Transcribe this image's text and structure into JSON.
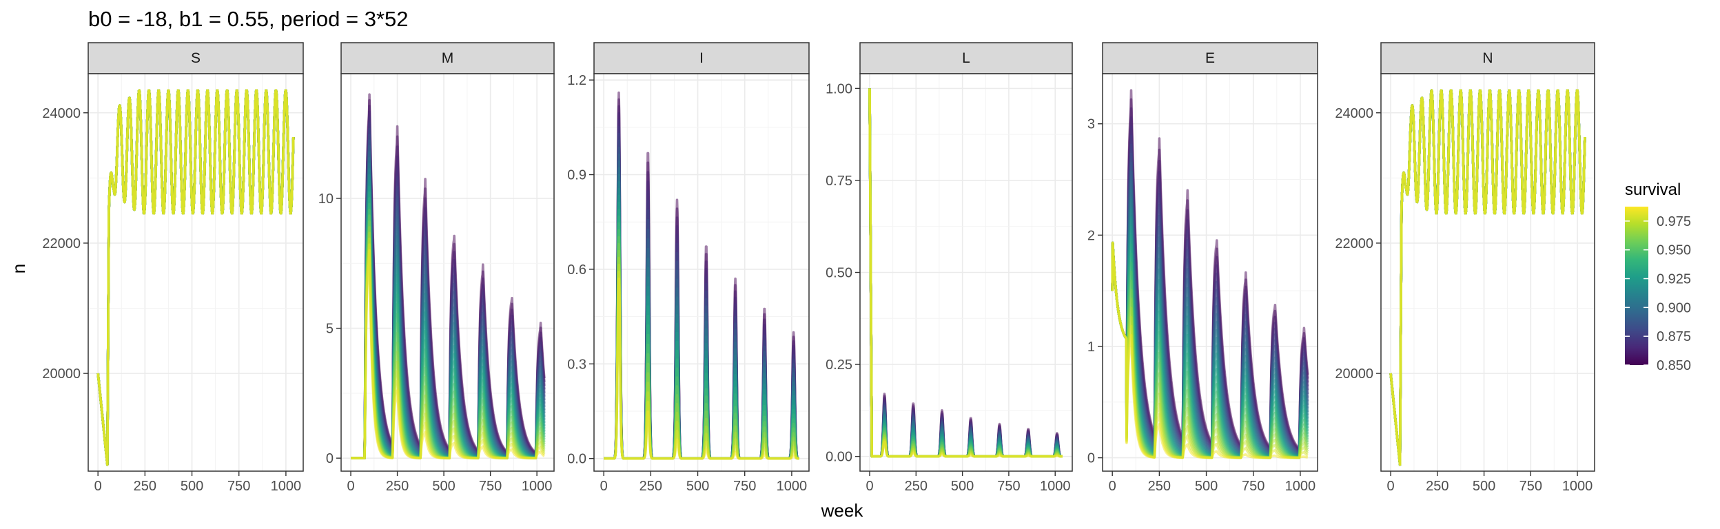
{
  "chart_data": {
    "type": "line",
    "title": "b0 = -18, b1 = 0.55, period = 3*52",
    "xlabel": "week",
    "ylabel": "n",
    "x_range": [
      0,
      1040
    ],
    "x_ticks": [
      0,
      250,
      500,
      750,
      1000
    ],
    "color_scale": {
      "title": "survival",
      "min": 0.85,
      "max": 0.9875,
      "ticks": [
        "0.975",
        "0.950",
        "0.925",
        "0.900",
        "0.875",
        "0.850"
      ],
      "tick_values": [
        0.975,
        0.95,
        0.925,
        0.9,
        0.875,
        0.85
      ],
      "colors": [
        "#440154",
        "#482878",
        "#3e4a89",
        "#31688e",
        "#26828e",
        "#1f9e89",
        "#35b779",
        "#6ece58",
        "#b5de2b",
        "#fde725"
      ]
    },
    "survival_values": [
      0.85,
      0.855,
      0.86,
      0.865,
      0.87,
      0.875,
      0.88,
      0.885,
      0.89,
      0.895,
      0.9,
      0.905,
      0.91,
      0.915,
      0.92,
      0.925,
      0.93,
      0.935,
      0.94,
      0.945,
      0.95,
      0.955,
      0.96,
      0.965,
      0.97,
      0.975,
      0.98,
      0.985
    ],
    "series_model": "one line per survival value; estimated from the figure",
    "peak_weeks": [
      100,
      250,
      400,
      555,
      710,
      865,
      1020
    ],
    "facets": [
      {
        "name": "S",
        "model": "oscillation",
        "ylim": [
          18500,
          24600
        ],
        "y_ticks": [
          20000,
          22000,
          24000
        ],
        "y_tick_labels": [
          "20000",
          "22000",
          "24000"
        ],
        "start": 20000,
        "dip_week": 50,
        "dip_value": 18600,
        "high": 24350,
        "low": 22450,
        "cycle_weeks": 52
      },
      {
        "name": "M",
        "model": "peaks",
        "ylim": [
          -0.5,
          14.8
        ],
        "y_ticks": [
          0,
          5,
          10
        ],
        "y_tick_labels": [
          "0",
          "5",
          "10"
        ],
        "peak_max": [
          14.0,
          12.5,
          10.5,
          8.6,
          7.3,
          6.2,
          5.1
        ],
        "peak_min": [
          8.0,
          2.6,
          1.0,
          0.6,
          0.45,
          0.35,
          0.25
        ],
        "rise_weeks": 25,
        "tail_weeks": 38
      },
      {
        "name": "I",
        "model": "spikes",
        "ylim": [
          -0.04,
          1.22
        ],
        "y_ticks": [
          0,
          0.3,
          0.6,
          0.9,
          1.2
        ],
        "y_tick_labels": [
          "0.0",
          "0.3",
          "0.6",
          "0.9",
          "1.2"
        ],
        "spike_weeks": [
          80,
          235,
          390,
          545,
          700,
          855,
          1010
        ],
        "peak_max": [
          1.16,
          0.98,
          0.82,
          0.68,
          0.57,
          0.48,
          0.4
        ],
        "peak_min": [
          0.57,
          0.15,
          0.06,
          0.03,
          0.02,
          0.012,
          0.008
        ],
        "half_width_weeks": 9
      },
      {
        "name": "L",
        "model": "spikes_initial",
        "ylim": [
          -0.04,
          1.04
        ],
        "y_ticks": [
          0,
          0.25,
          0.5,
          0.75,
          1.0
        ],
        "y_tick_labels": [
          "0.00",
          "0.25",
          "0.50",
          "0.75",
          "1.00"
        ],
        "initial_value": 1.0,
        "spike_weeks": [
          80,
          235,
          390,
          545,
          700,
          855,
          1010
        ],
        "peak_max": [
          0.17,
          0.145,
          0.125,
          0.105,
          0.088,
          0.075,
          0.063
        ],
        "peak_min": [
          0.04,
          0.01,
          0.005,
          0.003,
          0.002,
          0.001,
          0.001
        ],
        "half_width_weeks": 9
      },
      {
        "name": "E",
        "model": "peaks_initial",
        "ylim": [
          -0.12,
          3.45
        ],
        "y_ticks": [
          0,
          1,
          2,
          3
        ],
        "y_tick_labels": [
          "0",
          "1",
          "2",
          "3"
        ],
        "initial_value": 2.0,
        "initial_low": 1.0,
        "peak_max": [
          3.3,
          2.75,
          2.3,
          1.92,
          1.6,
          1.35,
          1.12
        ],
        "peak_min": [
          1.1,
          0.3,
          0.12,
          0.06,
          0.03,
          0.02,
          0.01
        ],
        "rise_weeks": 25,
        "tail_weeks": 45
      },
      {
        "name": "N",
        "model": "oscillation",
        "ylim": [
          18500,
          24600
        ],
        "y_ticks": [
          20000,
          22000,
          24000
        ],
        "y_tick_labels": [
          "20000",
          "22000",
          "24000"
        ],
        "start": 20000,
        "dip_week": 50,
        "dip_value": 18600,
        "high": 24350,
        "low": 22450,
        "cycle_weeks": 52
      }
    ]
  }
}
